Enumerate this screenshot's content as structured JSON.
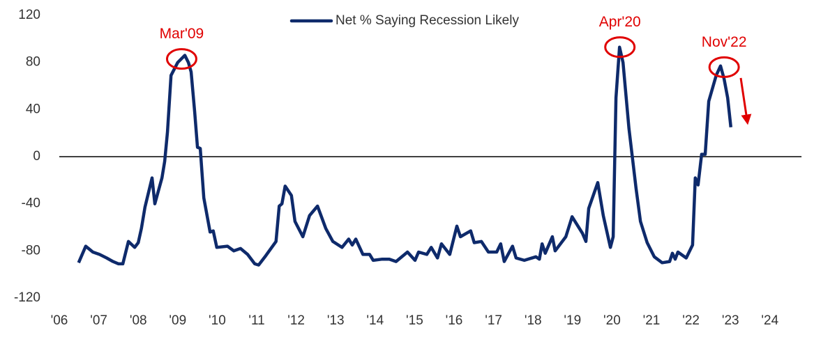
{
  "chart_data": {
    "type": "line",
    "series": [
      {
        "name": "Net % Saying Recession Likely",
        "color": "#0e2a6b",
        "x": [
          2006.49,
          2006.67,
          2006.85,
          2007.02,
          2007.2,
          2007.36,
          2007.5,
          2007.61,
          2007.75,
          2007.91,
          2008.0,
          2008.08,
          2008.17,
          2008.35,
          2008.42,
          2008.6,
          2008.67,
          2008.74,
          2008.83,
          2009.0,
          2009.18,
          2009.27,
          2009.34,
          2009.43,
          2009.5,
          2009.57,
          2009.66,
          2009.82,
          2009.9,
          2009.99,
          2010.26,
          2010.42,
          2010.59,
          2010.77,
          2010.95,
          2011.05,
          2011.21,
          2011.49,
          2011.57,
          2011.64,
          2011.72,
          2011.88,
          2011.97,
          2012.17,
          2012.34,
          2012.54,
          2012.75,
          2012.93,
          2013.16,
          2013.33,
          2013.42,
          2013.51,
          2013.69,
          2013.86,
          2013.95,
          2014.18,
          2014.36,
          2014.53,
          2014.82,
          2015.01,
          2015.1,
          2015.31,
          2015.42,
          2015.58,
          2015.68,
          2015.89,
          2015.98,
          2016.07,
          2016.16,
          2016.42,
          2016.51,
          2016.69,
          2016.87,
          2017.08,
          2017.18,
          2017.27,
          2017.48,
          2017.57,
          2017.78,
          2018.07,
          2018.16,
          2018.23,
          2018.31,
          2018.49,
          2018.56,
          2018.83,
          2018.99,
          2019.25,
          2019.34,
          2019.41,
          2019.64,
          2019.78,
          2019.96,
          2020.03,
          2020.1,
          2020.19,
          2020.28,
          2020.43,
          2020.61,
          2020.72,
          2020.89,
          2021.07,
          2021.27,
          2021.46,
          2021.53,
          2021.6,
          2021.67,
          2021.88,
          2022.04,
          2022.11,
          2022.18,
          2022.27,
          2022.36,
          2022.45,
          2022.64,
          2022.75,
          2022.84,
          2022.93,
          2023.01
        ],
        "values": [
          -90,
          -76,
          -81,
          -83,
          -86,
          -89,
          -91,
          -91,
          -72,
          -77,
          -73,
          -61,
          -43,
          -18,
          -40,
          -18,
          -4,
          21,
          69,
          80,
          86,
          80,
          72,
          38,
          8,
          7,
          -35,
          -64,
          -63,
          -77,
          -76,
          -80,
          -78,
          -83,
          -91,
          -92,
          -85,
          -72,
          -42,
          -40,
          -25,
          -33,
          -55,
          -68,
          -50,
          -42,
          -61,
          -72,
          -77,
          -70,
          -75,
          -70,
          -83,
          -83,
          -88,
          -87,
          -87,
          -89,
          -81,
          -88,
          -81,
          -83,
          -77,
          -86,
          -74,
          -83,
          -71,
          -59,
          -68,
          -63,
          -73,
          -72,
          -81,
          -81,
          -74,
          -89,
          -76,
          -86,
          -88,
          -85,
          -87,
          -74,
          -82,
          -68,
          -80,
          -68,
          -51,
          -65,
          -72,
          -44,
          -22,
          -50,
          -77,
          -68,
          50,
          93,
          80,
          24,
          -27,
          -55,
          -73,
          -85,
          -90,
          -89,
          -82,
          -87,
          -81,
          -86,
          -75,
          -18,
          -24,
          2,
          2,
          47,
          69,
          77,
          66,
          50,
          25
        ]
      }
    ],
    "xlim": [
      2006,
      2024.8
    ],
    "xticks": [
      {
        "value": 2006,
        "label": "'06"
      },
      {
        "value": 2007,
        "label": "'07"
      },
      {
        "value": 2008,
        "label": "'08"
      },
      {
        "value": 2009,
        "label": "'09"
      },
      {
        "value": 2010,
        "label": "'10"
      },
      {
        "value": 2011,
        "label": "'11"
      },
      {
        "value": 2012,
        "label": "'12"
      },
      {
        "value": 2013,
        "label": "'13"
      },
      {
        "value": 2014,
        "label": "'14"
      },
      {
        "value": 2015,
        "label": "'15"
      },
      {
        "value": 2016,
        "label": "'16"
      },
      {
        "value": 2017,
        "label": "'17"
      },
      {
        "value": 2018,
        "label": "'18"
      },
      {
        "value": 2019,
        "label": "'19"
      },
      {
        "value": 2020,
        "label": "'20"
      },
      {
        "value": 2021,
        "label": "'21"
      },
      {
        "value": 2022,
        "label": "'22"
      },
      {
        "value": 2023,
        "label": "'23"
      },
      {
        "value": 2024,
        "label": "'24"
      }
    ],
    "ylim": [
      -120,
      120
    ],
    "yticks": [
      -120,
      -80,
      -40,
      0,
      40,
      80,
      120
    ],
    "legend": "top",
    "annotations": [
      {
        "text": "Mar'09",
        "x": 2009.1,
        "y": 83,
        "color": "#e00000"
      },
      {
        "text": "Apr'20",
        "x": 2020.2,
        "y": 93,
        "color": "#e00000"
      },
      {
        "text": "Nov'22",
        "x": 2022.84,
        "y": 76,
        "color": "#e00000"
      }
    ]
  }
}
